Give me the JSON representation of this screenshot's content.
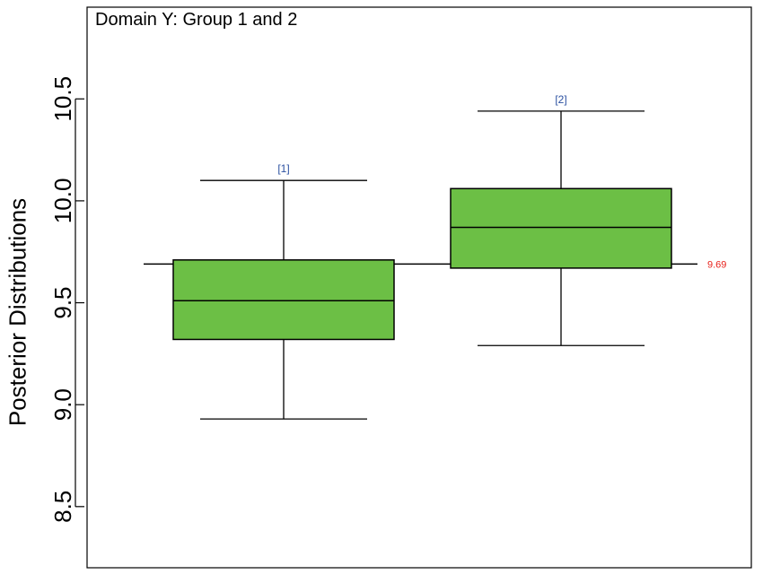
{
  "chart_data": {
    "type": "box",
    "title": "Domain Y: Group 1 and 2",
    "xlabel": "",
    "ylabel": "Posterior Distributions",
    "ylim": [
      8.2,
      10.95
    ],
    "yticks": [
      8.5,
      9.0,
      9.5,
      10.0,
      10.5
    ],
    "ytick_labels": [
      "8.5",
      "9.0",
      "9.5",
      "10.0",
      "10.5"
    ],
    "grid": false,
    "box_color": "#6cbf45",
    "label_color": "#2a4fa0",
    "reference_color": "#e8201a",
    "reference_line": {
      "value": 9.69,
      "label": "9.69"
    },
    "boxes": [
      {
        "label": "[1]",
        "whisker_low": 8.93,
        "q1": 9.32,
        "median": 9.51,
        "q3": 9.71,
        "whisker_high": 10.1
      },
      {
        "label": "[2]",
        "whisker_low": 9.29,
        "q1": 9.67,
        "median": 9.87,
        "q3": 10.06,
        "whisker_high": 10.44
      }
    ]
  }
}
